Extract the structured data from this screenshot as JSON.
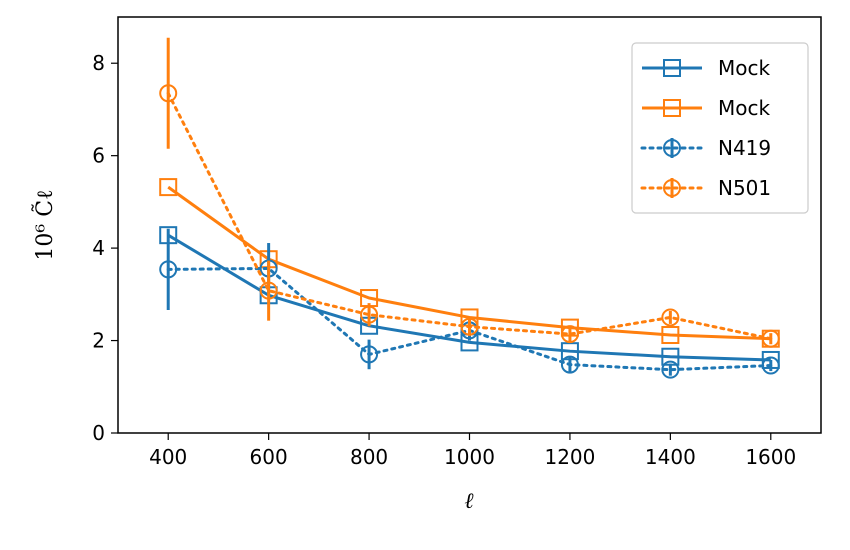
{
  "chart_data": {
    "type": "line",
    "title": "",
    "xlabel": "ℓ",
    "ylabel": "10⁶ C̃ℓ",
    "xlim": [
      300,
      1700
    ],
    "ylim": [
      0,
      9
    ],
    "xticks": [
      400,
      600,
      800,
      1000,
      1200,
      1400,
      1600
    ],
    "yticks": [
      0,
      2,
      4,
      6,
      8
    ],
    "grid": false,
    "legend_position": "top-right",
    "series": [
      {
        "name": "Mock",
        "color": "#1f77b4",
        "line_style": "solid",
        "marker": "square",
        "x": [
          400,
          600,
          800,
          1000,
          1200,
          1400,
          1600
        ],
        "y": [
          4.28,
          2.98,
          2.32,
          1.96,
          1.77,
          1.65,
          1.58
        ]
      },
      {
        "name": "Mock",
        "color": "#ff7f0e",
        "line_style": "solid",
        "marker": "square",
        "x": [
          400,
          600,
          800,
          1000,
          1200,
          1400,
          1600
        ],
        "y": [
          5.32,
          3.76,
          2.92,
          2.5,
          2.28,
          2.12,
          2.04
        ]
      },
      {
        "name": "N419",
        "color": "#1f77b4",
        "line_style": "dotted",
        "marker": "circle",
        "x": [
          400,
          600,
          800,
          1000,
          1200,
          1400,
          1600
        ],
        "y": [
          3.54,
          3.56,
          1.7,
          2.22,
          1.48,
          1.37,
          1.46
        ],
        "err": [
          0.88,
          0.55,
          0.32,
          0.22,
          0.16,
          0.13,
          0.12
        ]
      },
      {
        "name": "N501",
        "color": "#ff7f0e",
        "line_style": "dotted",
        "marker": "circle",
        "x": [
          400,
          600,
          800,
          1000,
          1200,
          1400,
          1600
        ],
        "y": [
          7.35,
          3.08,
          2.56,
          2.3,
          2.14,
          2.5,
          2.04
        ],
        "err": [
          1.2,
          0.65,
          0.25,
          0.2,
          0.16,
          0.14,
          0.12
        ]
      }
    ]
  }
}
